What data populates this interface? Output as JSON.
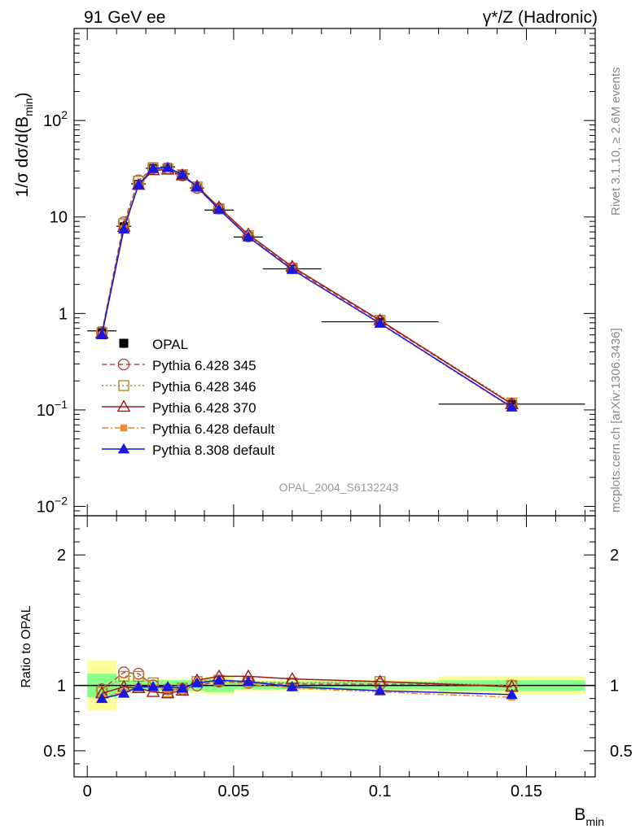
{
  "header": {
    "left": "91 GeV ee",
    "right": "γ*/Z (Hadronic)"
  },
  "side": {
    "rivet": "Rivet 3.1.10, ≥ 2.6M events",
    "mcplots": "mcplots.cern.ch [arXiv:1306.3436]"
  },
  "watermark": "OPAL_2004_S6132243",
  "chart_data": [
    {
      "type": "line",
      "panel": "main",
      "ylabel_main": "1/σ dσ/d(B",
      "ylabel_sub": "min",
      "ylabel_tail": ")",
      "yscale": "log",
      "ylim": [
        0.008,
        900
      ],
      "yticks": [
        {
          "value": 0.01,
          "base": "10",
          "exp": "−2"
        },
        {
          "value": 0.1,
          "base": "10",
          "exp": "−1"
        },
        {
          "value": 1,
          "base": "1",
          "exp": ""
        },
        {
          "value": 10,
          "base": "10",
          "exp": ""
        },
        {
          "value": 100,
          "base": "10",
          "exp": "2"
        }
      ],
      "data": {
        "name": "OPAL",
        "x": [
          0.005,
          0.0125,
          0.0175,
          0.0225,
          0.0275,
          0.0325,
          0.0375,
          0.045,
          0.055,
          0.07,
          0.1,
          0.145
        ],
        "xerr": [
          0.005,
          0.0025,
          0.0025,
          0.0025,
          0.0025,
          0.0025,
          0.0025,
          0.005,
          0.005,
          0.01,
          0.02,
          0.025
        ],
        "y": [
          0.66,
          8.0,
          22.0,
          32.0,
          33.0,
          28.0,
          20.0,
          11.8,
          6.2,
          2.9,
          0.82,
          0.115
        ]
      },
      "series": [
        {
          "name": "Pythia 6.428 345",
          "color": "#b44b4b",
          "dash": "6,4",
          "marker": "circle-open",
          "x": [
            0.005,
            0.0125,
            0.0175,
            0.0225,
            0.0275,
            0.0325,
            0.0375,
            0.045,
            0.055,
            0.07,
            0.1,
            0.145
          ],
          "y": [
            0.64,
            8.8,
            24.0,
            32.0,
            32.0,
            27.0,
            20.0,
            12.2,
            6.3,
            2.95,
            0.83,
            0.115
          ]
        },
        {
          "name": "Pythia 6.428 346",
          "color": "#b8862b",
          "dash": "2,3",
          "marker": "square-open",
          "x": [
            0.005,
            0.0125,
            0.0175,
            0.0225,
            0.0275,
            0.0325,
            0.0375,
            0.045,
            0.055,
            0.07,
            0.1,
            0.145
          ],
          "y": [
            0.63,
            8.5,
            23.5,
            32.5,
            31.5,
            27.5,
            20.5,
            12.2,
            6.4,
            2.95,
            0.85,
            0.118
          ]
        },
        {
          "name": "Pythia 6.428 370",
          "color": "#a01818",
          "dash": "",
          "marker": "triangle-open",
          "x": [
            0.005,
            0.0125,
            0.0175,
            0.0225,
            0.0275,
            0.0325,
            0.0375,
            0.045,
            0.055,
            0.07,
            0.1,
            0.145
          ],
          "y": [
            0.62,
            7.9,
            21.5,
            30.5,
            31.0,
            27.0,
            20.8,
            12.6,
            6.6,
            3.05,
            0.85,
            0.115
          ]
        },
        {
          "name": "Pythia 6.428 default",
          "color": "#f08a30",
          "dash": "8,3,2,3",
          "marker": "square-filled",
          "x": [
            0.005,
            0.0125,
            0.0175,
            0.0225,
            0.0275,
            0.0325,
            0.0375,
            0.045,
            0.055,
            0.07,
            0.1,
            0.145
          ],
          "y": [
            0.6,
            7.6,
            21.8,
            31.5,
            32.0,
            27.0,
            20.4,
            12.1,
            6.3,
            2.85,
            0.78,
            0.105
          ]
        },
        {
          "name": "Pythia 8.308 default",
          "color": "#1818e0",
          "dash": "",
          "marker": "triangle-filled",
          "x": [
            0.005,
            0.0125,
            0.0175,
            0.0225,
            0.0275,
            0.0325,
            0.0375,
            0.045,
            0.055,
            0.07,
            0.1,
            0.145
          ],
          "y": [
            0.6,
            7.5,
            21.6,
            31.8,
            32.5,
            27.5,
            20.5,
            12.0,
            6.2,
            2.85,
            0.79,
            0.107
          ]
        }
      ],
      "legend_position": "bottom-left"
    },
    {
      "type": "line",
      "panel": "ratio",
      "ylabel": "Ratio to OPAL",
      "ylim": [
        0.3,
        2.3
      ],
      "yticks": [
        0.5,
        1,
        2
      ],
      "ytick_labels": [
        "0.5",
        "1",
        "2"
      ],
      "xlabel_main": "B",
      "xlabel_sub": "min",
      "xlim": [
        -0.0045,
        0.1735
      ],
      "xticks": [
        0,
        0.05,
        0.1,
        0.15
      ],
      "xtick_labels": [
        "0",
        "0.05",
        "0.1",
        "0.15"
      ],
      "bands": {
        "x_lo": [
          0,
          0.01,
          0.015,
          0.02,
          0.025,
          0.03,
          0.035,
          0.04,
          0.05,
          0.06,
          0.08,
          0.12
        ],
        "x_hi": [
          0.01,
          0.015,
          0.02,
          0.025,
          0.03,
          0.035,
          0.04,
          0.05,
          0.06,
          0.08,
          0.12,
          0.17
        ],
        "inner": [
          0.09,
          0.04,
          0.04,
          0.04,
          0.04,
          0.04,
          0.04,
          0.05,
          0.03,
          0.03,
          0.03,
          0.04
        ],
        "outer": [
          0.19,
          0.06,
          0.05,
          0.05,
          0.05,
          0.05,
          0.06,
          0.07,
          0.04,
          0.04,
          0.04,
          0.07
        ]
      },
      "series": [
        {
          "name": "Pythia 6.428 345",
          "y": [
            0.97,
            1.1,
            1.09,
            1.0,
            0.97,
            0.97,
            1.0,
            1.03,
            1.02,
            1.01,
            1.01,
            1.0
          ]
        },
        {
          "name": "Pythia 6.428 346",
          "y": [
            0.95,
            1.07,
            1.07,
            1.02,
            0.95,
            0.98,
            1.03,
            1.04,
            1.03,
            1.02,
            1.03,
            1.0
          ]
        },
        {
          "name": "Pythia 6.428 370",
          "y": [
            0.94,
            0.99,
            0.98,
            0.95,
            0.94,
            0.96,
            1.04,
            1.07,
            1.07,
            1.05,
            1.03,
            0.99
          ]
        },
        {
          "name": "Pythia 6.428 default",
          "y": [
            0.91,
            0.95,
            0.99,
            0.98,
            0.97,
            0.97,
            1.02,
            1.03,
            1.01,
            0.98,
            0.95,
            0.91
          ]
        },
        {
          "name": "Pythia 8.308 default",
          "y": [
            0.9,
            0.94,
            0.99,
            0.99,
            0.99,
            0.98,
            1.02,
            1.04,
            1.03,
            0.99,
            0.96,
            0.93
          ]
        }
      ]
    }
  ]
}
